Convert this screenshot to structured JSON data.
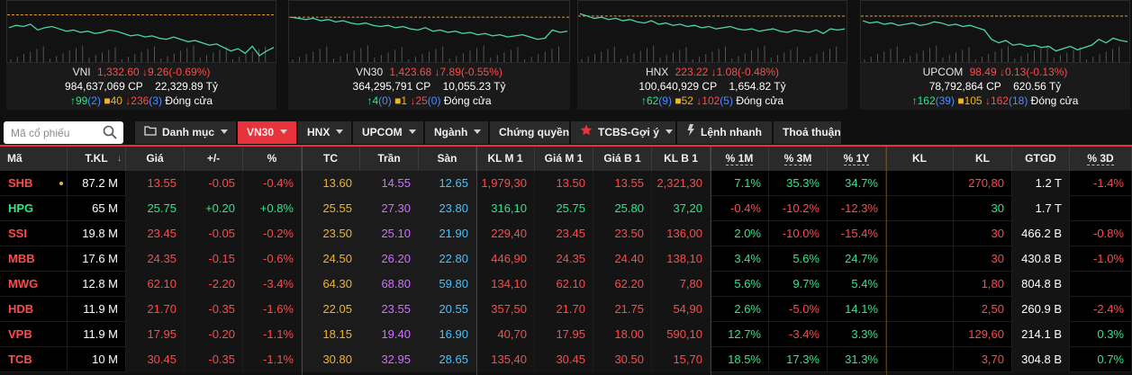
{
  "indices": [
    {
      "name": "VNI",
      "price": "1,332.60",
      "change": "9.26(-0.69%)",
      "change_dir": "down",
      "volume": "984,637,069 CP",
      "value": "22,329.89 Tỷ",
      "advances": "99",
      "adv_ceiling": "(2)",
      "unchanged": "40",
      "declines": "236",
      "dec_floor": "(3)",
      "status": "Đóng cửa",
      "spark": [
        20,
        18,
        19,
        17,
        22,
        20,
        19,
        21,
        23,
        22,
        24,
        23,
        25,
        24,
        22,
        23,
        25,
        27,
        26,
        28,
        27,
        29,
        30,
        28,
        30,
        32,
        31,
        33,
        35,
        34,
        37,
        40,
        38,
        42,
        36,
        44,
        40,
        37
      ],
      "ref_level": 9
    },
    {
      "name": "VN30",
      "price": "1,423.68",
      "change": "7.89(-0.55%)",
      "change_dir": "down",
      "volume": "364,295,791 CP",
      "value": "10,055.23 Tỷ",
      "advances": "4",
      "adv_ceiling": "(0)",
      "unchanged": "1",
      "declines": "25",
      "dec_floor": "(0)",
      "status": "Đóng cửa",
      "spark": [
        11,
        12,
        13,
        12,
        14,
        13,
        15,
        14,
        16,
        17,
        16,
        18,
        19,
        18,
        20,
        19,
        21,
        22,
        20,
        23,
        22,
        24,
        23,
        25,
        24,
        26,
        25,
        27,
        26,
        28,
        27,
        26,
        28,
        30,
        29,
        22,
        24,
        23
      ],
      "ref_level": 11
    },
    {
      "name": "HNX",
      "price": "223.22",
      "change": "1.08(-0.48%)",
      "change_dir": "down",
      "volume": "100,640,929 CP",
      "value": "1,654.82 Tỷ",
      "advances": "62",
      "adv_ceiling": "(9)",
      "unchanged": "52",
      "declines": "102",
      "dec_floor": "(5)",
      "status": "Đóng cửa",
      "spark": [
        8,
        10,
        12,
        11,
        13,
        12,
        14,
        13,
        15,
        16,
        14,
        17,
        16,
        18,
        17,
        19,
        18,
        20,
        19,
        21,
        20,
        19,
        21,
        22,
        21,
        23,
        22,
        21,
        23,
        24,
        22,
        23,
        24,
        22,
        25,
        21,
        22,
        21
      ],
      "ref_level": 10
    },
    {
      "name": "UPCOM",
      "price": "98.49",
      "change": "0.13(-0.13%)",
      "change_dir": "down",
      "volume": "78,792,864 CP",
      "value": "620.56 Tỷ",
      "advances": "162",
      "adv_ceiling": "(39)",
      "unchanged": "105",
      "declines": "162",
      "dec_floor": "(18)",
      "status": "Đóng cửa",
      "spark": [
        14,
        16,
        15,
        17,
        16,
        18,
        17,
        16,
        18,
        17,
        15,
        16,
        18,
        17,
        19,
        18,
        20,
        22,
        30,
        33,
        31,
        35,
        34,
        36,
        35,
        37,
        36,
        40,
        38,
        36,
        39,
        37,
        35,
        30,
        33,
        29,
        31,
        32
      ],
      "ref_level": 10
    }
  ],
  "search": {
    "placeholder": "Mã cổ phiếu"
  },
  "tabs": [
    {
      "label": "Danh mục",
      "caret": true,
      "icon": "folder-icon"
    },
    {
      "label": "VN30",
      "caret": true,
      "active": true
    },
    {
      "label": "HNX",
      "caret": true
    },
    {
      "label": "UPCOM",
      "caret": true
    },
    {
      "label": "Ngành",
      "caret": true
    },
    {
      "label": "Chứng quyền",
      "caret": false
    },
    {
      "label": "TCBS-Gợi ý",
      "caret": true,
      "icon": "star-icon"
    },
    {
      "label": "Lệnh nhanh",
      "caret": false,
      "icon": "bolt-icon"
    },
    {
      "label": "Thoả thuận",
      "caret": false
    }
  ],
  "columns": [
    "Mã",
    "T.KL",
    "Giá",
    "+/-",
    "%",
    "TC",
    "Trần",
    "Sàn",
    "KL M 1",
    "Giá M 1",
    "Giá B 1",
    "KL B 1",
    "% 1M",
    "% 3M",
    "% 1Y",
    "KL",
    "KL",
    "GTGD",
    "% 3D"
  ],
  "colors": {
    "up": "#2ee68a",
    "down": "#ff4a4a",
    "ref": "#f0b429",
    "accent": "#e8323c"
  },
  "rows": [
    {
      "sym": "SHB",
      "dir": "down",
      "dot": true,
      "tkl": "87.2 M",
      "price": "13.55",
      "chg": "-0.05",
      "pct": "-0.4%",
      "tc": "13.60",
      "ceil": "14.55",
      "floor": "12.65",
      "klm1": "1,979,30",
      "gm1": "13.50",
      "gb1": "13.55",
      "klb1": "2,321,30",
      "p1m": "7.1%",
      "p3m": "35.3%",
      "p1y": "34.7%",
      "kl1": "",
      "kl2": "270,80",
      "gtgd": "1.2 T",
      "p3d": "-1.4%"
    },
    {
      "sym": "HPG",
      "dir": "up",
      "dot": false,
      "tkl": "65 M",
      "price": "25.75",
      "chg": "+0.20",
      "pct": "+0.8%",
      "tc": "25.55",
      "ceil": "27.30",
      "floor": "23.80",
      "klm1": "316,10",
      "gm1": "25.75",
      "gb1": "25.80",
      "klb1": "37,20",
      "p1m": "-0.4%",
      "p3m": "-10.2%",
      "p1y": "-12.3%",
      "kl1": "",
      "kl2": "30",
      "gtgd": "1.7 T",
      "p3d": ""
    },
    {
      "sym": "SSI",
      "dir": "down",
      "dot": false,
      "tkl": "19.8 M",
      "price": "23.45",
      "chg": "-0.05",
      "pct": "-0.2%",
      "tc": "23.50",
      "ceil": "25.10",
      "floor": "21.90",
      "klm1": "229,40",
      "gm1": "23.45",
      "gb1": "23.50",
      "klb1": "136,00",
      "p1m": "2.0%",
      "p3m": "-10.0%",
      "p1y": "-15.4%",
      "kl1": "",
      "kl2": "30",
      "gtgd": "466.2 B",
      "p3d": "-0.8%"
    },
    {
      "sym": "MBB",
      "dir": "down",
      "dot": false,
      "tkl": "17.6 M",
      "price": "24.35",
      "chg": "-0.15",
      "pct": "-0.6%",
      "tc": "24.50",
      "ceil": "26.20",
      "floor": "22.80",
      "klm1": "446,90",
      "gm1": "24.35",
      "gb1": "24.40",
      "klb1": "138,10",
      "p1m": "3.4%",
      "p3m": "5.6%",
      "p1y": "24.7%",
      "kl1": "",
      "kl2": "30",
      "gtgd": "430.8 B",
      "p3d": "-1.0%"
    },
    {
      "sym": "MWG",
      "dir": "down",
      "dot": false,
      "tkl": "12.8 M",
      "price": "62.10",
      "chg": "-2.20",
      "pct": "-3.4%",
      "tc": "64.30",
      "ceil": "68.80",
      "floor": "59.80",
      "klm1": "134,10",
      "gm1": "62.10",
      "gb1": "62.20",
      "klb1": "7,80",
      "p1m": "5.6%",
      "p3m": "9.7%",
      "p1y": "5.4%",
      "kl1": "",
      "kl2": "1,80",
      "gtgd": "804.8 B",
      "p3d": ""
    },
    {
      "sym": "HDB",
      "dir": "down",
      "dot": false,
      "tkl": "11.9 M",
      "price": "21.70",
      "chg": "-0.35",
      "pct": "-1.6%",
      "tc": "22.05",
      "ceil": "23.55",
      "floor": "20.55",
      "klm1": "357,50",
      "gm1": "21.70",
      "gb1": "21.75",
      "klb1": "54,90",
      "p1m": "2.6%",
      "p3m": "-5.0%",
      "p1y": "14.1%",
      "kl1": "",
      "kl2": "2,50",
      "gtgd": "260.9 B",
      "p3d": "-2.4%"
    },
    {
      "sym": "VPB",
      "dir": "down",
      "dot": false,
      "tkl": "11.9 M",
      "price": "17.95",
      "chg": "-0.20",
      "pct": "-1.1%",
      "tc": "18.15",
      "ceil": "19.40",
      "floor": "16.90",
      "klm1": "40,70",
      "gm1": "17.95",
      "gb1": "18.00",
      "klb1": "590,10",
      "p1m": "12.7%",
      "p3m": "-3.4%",
      "p1y": "3.3%",
      "kl1": "",
      "kl2": "129,60",
      "gtgd": "214.1 B",
      "p3d": "0.3%"
    },
    {
      "sym": "TCB",
      "dir": "down",
      "dot": false,
      "tkl": "10 M",
      "price": "30.45",
      "chg": "-0.35",
      "pct": "-1.1%",
      "tc": "30.80",
      "ceil": "32.95",
      "floor": "28.65",
      "klm1": "135,40",
      "gm1": "30.45",
      "gb1": "30.50",
      "klb1": "15,70",
      "p1m": "18.5%",
      "p3m": "17.3%",
      "p1y": "31.3%",
      "kl1": "",
      "kl2": "3,70",
      "gtgd": "304.8 B",
      "p3d": "0.7%"
    }
  ]
}
